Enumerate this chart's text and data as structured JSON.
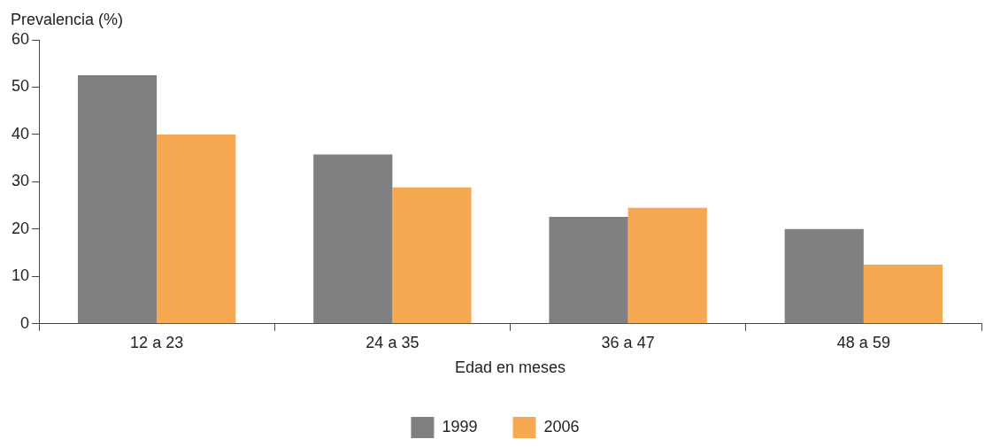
{
  "chart_data": {
    "type": "bar",
    "ylabel": "Prevalencia (%)",
    "xlabel": "Edad en meses",
    "categories": [
      "12 a 23",
      "24 a 35",
      "36 a 47",
      "48 a 59"
    ],
    "series": [
      {
        "name": "1999",
        "color": "#808083",
        "values": [
          52.5,
          35.8,
          22.6,
          20
        ]
      },
      {
        "name": "2006",
        "color": "#f6a852",
        "values": [
          40,
          28.8,
          24.5,
          12.5
        ]
      }
    ],
    "ylim": [
      0,
      60
    ],
    "yticks": [
      0,
      10,
      20,
      30,
      40,
      50,
      60
    ],
    "grid": false,
    "legend": "bottom"
  }
}
